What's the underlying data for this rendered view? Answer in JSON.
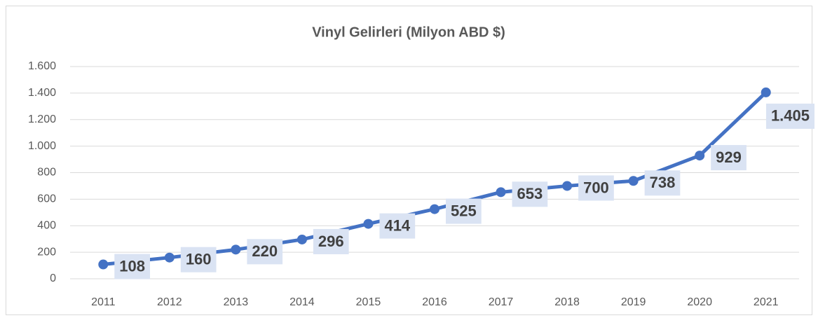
{
  "chart_data": {
    "type": "line",
    "title": "Vinyl Gelirleri (Milyon ABD $)",
    "categories": [
      "2011",
      "2012",
      "2013",
      "2014",
      "2015",
      "2016",
      "2017",
      "2018",
      "2019",
      "2020",
      "2021"
    ],
    "series": [
      {
        "name": "Vinyl Gelirleri",
        "color": "#4472c4",
        "values": [
          108,
          160,
          220,
          296,
          414,
          525,
          653,
          700,
          738,
          929,
          1405
        ],
        "value_labels": [
          "108",
          "160",
          "220",
          "296",
          "414",
          "525",
          "653",
          "700",
          "738",
          "929",
          "1.405"
        ]
      }
    ],
    "ylim": [
      0,
      1600
    ],
    "yticks": [
      0,
      200,
      400,
      600,
      800,
      {
        "value": 1000,
        "label": "1.000"
      },
      {
        "value": 1200,
        "label": "1.200"
      },
      {
        "value": 1400,
        "label": "1.400"
      },
      {
        "value": 1600,
        "label": "1.600"
      }
    ],
    "grid": true
  }
}
